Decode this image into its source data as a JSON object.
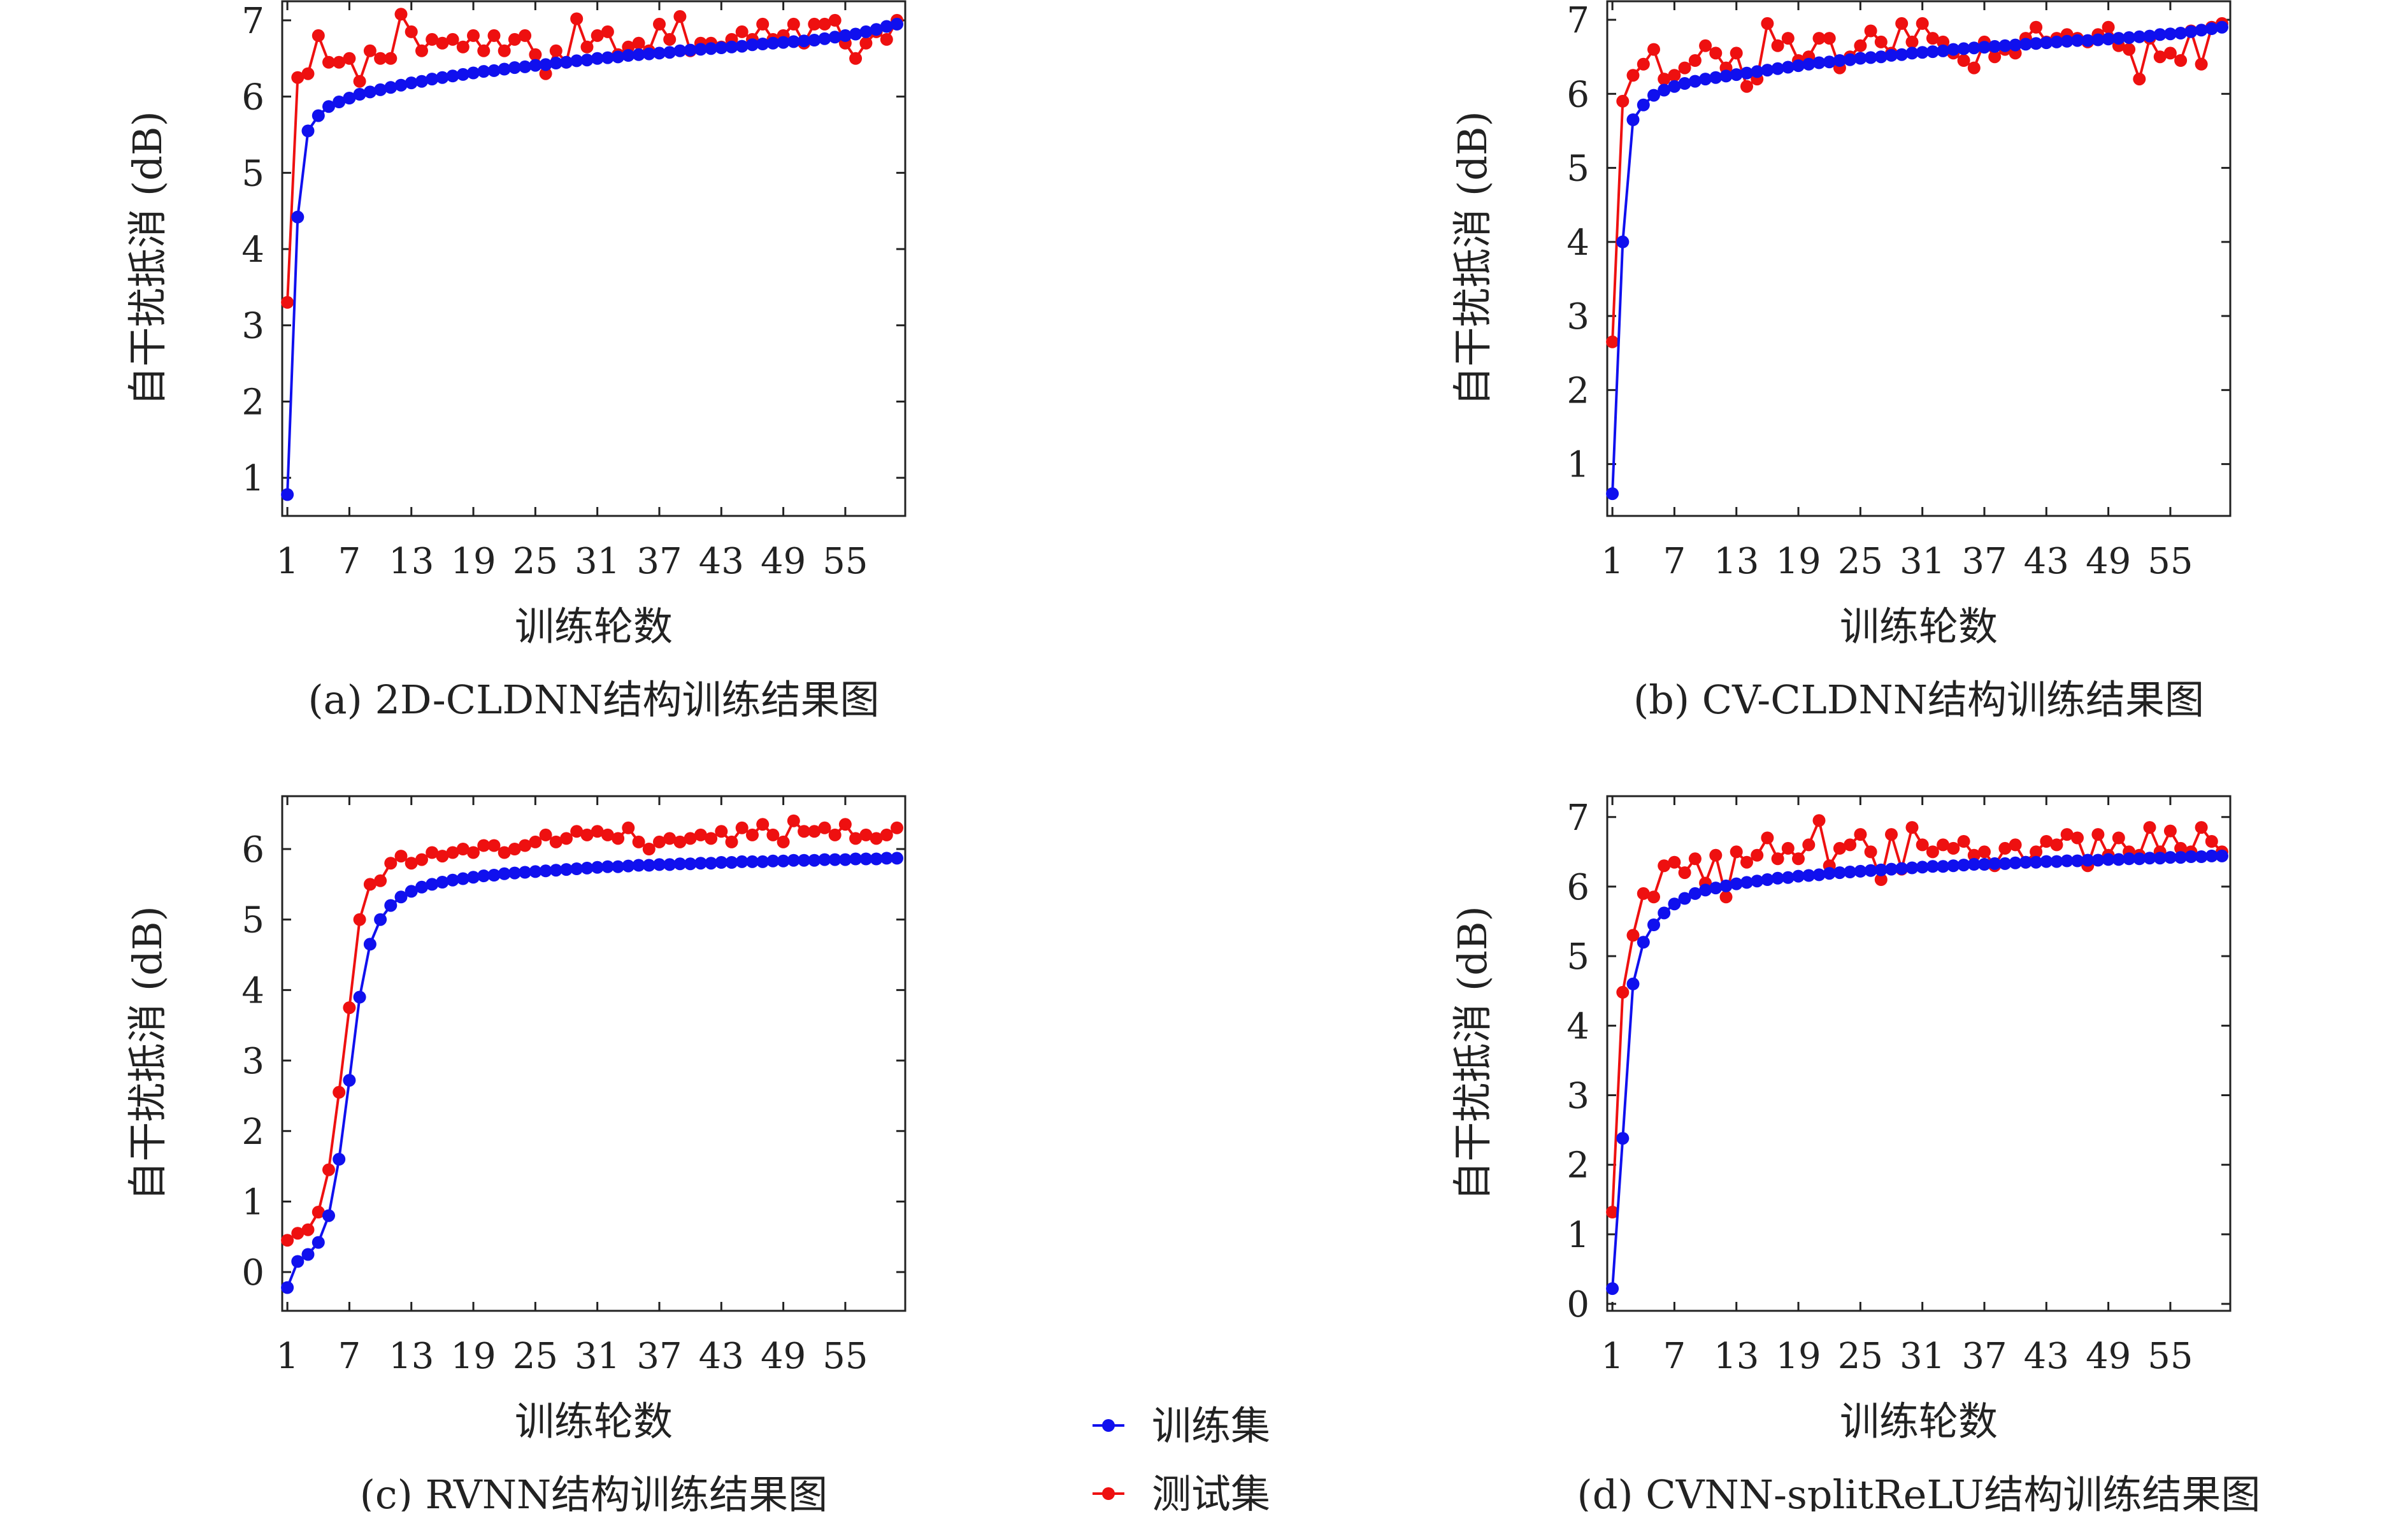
{
  "legend": {
    "train_label": "训练集",
    "test_label": "测试集",
    "train_color": "#1010ee",
    "test_color": "#ee1010"
  },
  "chart_data": [
    {
      "type": "line",
      "caption": "(a) 2D-CLDNN结构训练结果图",
      "xlabel": "训练轮数",
      "ylabel": "自干扰抵消 (dB)",
      "x_ticks": [
        1,
        7,
        13,
        19,
        25,
        31,
        37,
        43,
        49,
        55
      ],
      "y_ticks": [
        1,
        2,
        3,
        4,
        5,
        6,
        7
      ],
      "xlim": [
        0.5,
        60.8
      ],
      "ylim": [
        0.5,
        7.25
      ],
      "series": [
        {
          "name": "训练集",
          "color": "#1010ee",
          "values": [
            0.78,
            4.42,
            5.55,
            5.75,
            5.87,
            5.93,
            5.98,
            6.03,
            6.06,
            6.09,
            6.12,
            6.15,
            6.18,
            6.2,
            6.23,
            6.25,
            6.27,
            6.29,
            6.31,
            6.33,
            6.34,
            6.36,
            6.38,
            6.39,
            6.41,
            6.42,
            6.44,
            6.45,
            6.47,
            6.48,
            6.5,
            6.51,
            6.52,
            6.54,
            6.55,
            6.56,
            6.57,
            6.58,
            6.6,
            6.61,
            6.62,
            6.63,
            6.64,
            6.65,
            6.66,
            6.68,
            6.69,
            6.7,
            6.71,
            6.72,
            6.73,
            6.74,
            6.76,
            6.78,
            6.8,
            6.82,
            6.85,
            6.88,
            6.92,
            6.95
          ]
        },
        {
          "name": "测试集",
          "color": "#ee1010",
          "values": [
            3.3,
            6.25,
            6.3,
            6.8,
            6.45,
            6.45,
            6.5,
            6.2,
            6.6,
            6.5,
            6.5,
            7.08,
            6.85,
            6.6,
            6.75,
            6.7,
            6.75,
            6.65,
            6.8,
            6.6,
            6.8,
            6.6,
            6.75,
            6.8,
            6.55,
            6.3,
            6.6,
            6.45,
            7.02,
            6.65,
            6.8,
            6.85,
            6.55,
            6.65,
            6.7,
            6.6,
            6.95,
            6.75,
            7.05,
            6.6,
            6.7,
            6.7,
            6.65,
            6.75,
            6.85,
            6.75,
            6.95,
            6.75,
            6.8,
            6.95,
            6.7,
            6.95,
            6.95,
            7.0,
            6.7,
            6.5,
            6.7,
            6.85,
            6.75,
            7.0
          ]
        }
      ]
    },
    {
      "type": "line",
      "caption": "(b) CV-CLDNN结构训练结果图",
      "xlabel": "训练轮数",
      "ylabel": "自干扰抵消 (dB)",
      "x_ticks": [
        1,
        7,
        13,
        19,
        25,
        31,
        37,
        43,
        49,
        55
      ],
      "y_ticks": [
        1,
        2,
        3,
        4,
        5,
        6,
        7
      ],
      "xlim": [
        0.5,
        60.8
      ],
      "ylim": [
        0.3,
        7.25
      ],
      "series": [
        {
          "name": "训练集",
          "color": "#1010ee",
          "values": [
            0.6,
            4.0,
            5.65,
            5.85,
            5.98,
            6.05,
            6.1,
            6.14,
            6.17,
            6.2,
            6.22,
            6.24,
            6.26,
            6.28,
            6.3,
            6.32,
            6.34,
            6.36,
            6.38,
            6.4,
            6.42,
            6.43,
            6.45,
            6.46,
            6.48,
            6.49,
            6.5,
            6.52,
            6.53,
            6.55,
            6.56,
            6.57,
            6.58,
            6.6,
            6.61,
            6.62,
            6.63,
            6.64,
            6.65,
            6.66,
            6.67,
            6.68,
            6.69,
            6.7,
            6.71,
            6.72,
            6.72,
            6.73,
            6.74,
            6.75,
            6.76,
            6.77,
            6.78,
            6.8,
            6.81,
            6.82,
            6.84,
            6.86,
            6.88,
            6.9
          ]
        },
        {
          "name": "测试集",
          "color": "#ee1010",
          "values": [
            2.65,
            5.9,
            6.25,
            6.4,
            6.6,
            6.2,
            6.25,
            6.35,
            6.45,
            6.65,
            6.55,
            6.35,
            6.55,
            6.1,
            6.2,
            6.95,
            6.65,
            6.75,
            6.45,
            6.5,
            6.75,
            6.75,
            6.35,
            6.5,
            6.65,
            6.85,
            6.7,
            6.55,
            6.95,
            6.7,
            6.95,
            6.75,
            6.7,
            6.55,
            6.45,
            6.35,
            6.7,
            6.5,
            6.6,
            6.55,
            6.75,
            6.9,
            6.7,
            6.75,
            6.8,
            6.75,
            6.7,
            6.8,
            6.9,
            6.65,
            6.6,
            6.2,
            6.75,
            6.5,
            6.55,
            6.45,
            6.85,
            6.4,
            6.9,
            6.95
          ]
        }
      ]
    },
    {
      "type": "line",
      "caption": "(c) RVNN结构训练结果图",
      "xlabel": "训练轮数",
      "ylabel": "自干扰抵消 (dB)",
      "x_ticks": [
        1,
        7,
        13,
        19,
        25,
        31,
        37,
        43,
        49,
        55
      ],
      "y_ticks": [
        0,
        1,
        2,
        3,
        4,
        5,
        6
      ],
      "xlim": [
        0.5,
        60.8
      ],
      "ylim": [
        -0.55,
        6.75
      ],
      "series": [
        {
          "name": "训练集",
          "color": "#1010ee",
          "values": [
            -0.22,
            0.15,
            0.25,
            0.42,
            0.8,
            1.6,
            2.72,
            3.9,
            4.65,
            5.0,
            5.2,
            5.32,
            5.4,
            5.46,
            5.5,
            5.53,
            5.56,
            5.58,
            5.6,
            5.62,
            5.63,
            5.65,
            5.66,
            5.67,
            5.68,
            5.69,
            5.7,
            5.71,
            5.72,
            5.73,
            5.74,
            5.75,
            5.75,
            5.76,
            5.77,
            5.77,
            5.78,
            5.78,
            5.79,
            5.79,
            5.8,
            5.8,
            5.81,
            5.81,
            5.82,
            5.82,
            5.82,
            5.83,
            5.83,
            5.84,
            5.84,
            5.84,
            5.85,
            5.85,
            5.85,
            5.86,
            5.86,
            5.86,
            5.87,
            5.87
          ]
        },
        {
          "name": "测试集",
          "color": "#ee1010",
          "values": [
            0.45,
            0.55,
            0.6,
            0.85,
            1.45,
            2.55,
            3.75,
            5.0,
            5.5,
            5.55,
            5.8,
            5.9,
            5.8,
            5.85,
            5.95,
            5.9,
            5.95,
            6.0,
            5.95,
            6.05,
            6.05,
            5.95,
            6.0,
            6.05,
            6.1,
            6.2,
            6.1,
            6.15,
            6.25,
            6.2,
            6.25,
            6.2,
            6.15,
            6.3,
            6.1,
            6.0,
            6.1,
            6.15,
            6.1,
            6.15,
            6.2,
            6.15,
            6.25,
            6.1,
            6.3,
            6.2,
            6.35,
            6.2,
            6.1,
            6.4,
            6.25,
            6.25,
            6.3,
            6.2,
            6.35,
            6.15,
            6.2,
            6.15,
            6.2,
            6.3
          ]
        }
      ]
    },
    {
      "type": "line",
      "caption": "(d) CVNN-splitReLU结构训练结果图",
      "xlabel": "训练轮数",
      "ylabel": "自干扰抵消 (dB)",
      "x_ticks": [
        1,
        7,
        13,
        19,
        25,
        31,
        37,
        43,
        49,
        55
      ],
      "y_ticks": [
        0,
        1,
        2,
        3,
        4,
        5,
        6,
        7
      ],
      "xlim": [
        0.5,
        60.8
      ],
      "ylim": [
        -0.1,
        7.3
      ],
      "series": [
        {
          "name": "训练集",
          "color": "#1010ee",
          "values": [
            0.22,
            2.38,
            4.6,
            5.2,
            5.45,
            5.62,
            5.75,
            5.83,
            5.9,
            5.95,
            5.98,
            6.01,
            6.04,
            6.06,
            6.08,
            6.1,
            6.12,
            6.13,
            6.15,
            6.16,
            6.17,
            6.19,
            6.2,
            6.21,
            6.22,
            6.23,
            6.24,
            6.25,
            6.26,
            6.27,
            6.28,
            6.29,
            6.29,
            6.3,
            6.31,
            6.32,
            6.32,
            6.33,
            6.33,
            6.34,
            6.35,
            6.35,
            6.36,
            6.36,
            6.37,
            6.37,
            6.38,
            6.38,
            6.39,
            6.39,
            6.4,
            6.4,
            6.41,
            6.41,
            6.42,
            6.42,
            6.43,
            6.43,
            6.44,
            6.44
          ]
        },
        {
          "name": "测试集",
          "color": "#ee1010",
          "values": [
            1.32,
            4.48,
            5.3,
            5.9,
            5.85,
            6.3,
            6.35,
            6.2,
            6.4,
            6.05,
            6.45,
            5.85,
            6.5,
            6.35,
            6.45,
            6.7,
            6.4,
            6.55,
            6.4,
            6.6,
            6.95,
            6.3,
            6.55,
            6.6,
            6.75,
            6.5,
            6.1,
            6.75,
            6.25,
            6.85,
            6.6,
            6.5,
            6.6,
            6.55,
            6.65,
            6.45,
            6.5,
            6.3,
            6.55,
            6.6,
            6.35,
            6.5,
            6.65,
            6.6,
            6.75,
            6.7,
            6.3,
            6.75,
            6.45,
            6.7,
            6.5,
            6.45,
            6.85,
            6.5,
            6.8,
            6.55,
            6.5,
            6.85,
            6.65,
            6.5
          ]
        }
      ]
    }
  ]
}
